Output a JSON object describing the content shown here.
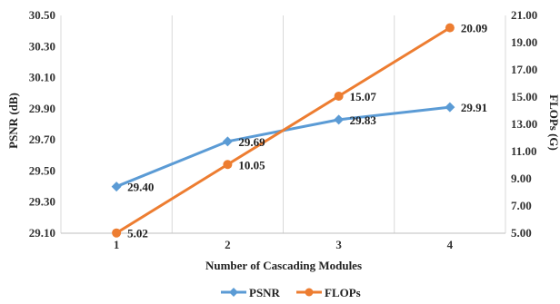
{
  "chart_data": {
    "type": "line",
    "categories": [
      "1",
      "2",
      "3",
      "4"
    ],
    "xlabel": "Number of Cascading Modules",
    "y_left": {
      "label": "PSNR (dB)",
      "range": [
        29.1,
        30.5
      ],
      "ticks": [
        "29.10",
        "29.30",
        "29.50",
        "29.70",
        "29.90",
        "30.10",
        "30.30",
        "30.50"
      ]
    },
    "y_right": {
      "label": "FLOPs (G)",
      "range": [
        5.0,
        21.0
      ],
      "ticks": [
        "5.00",
        "7.00",
        "9.00",
        "11.00",
        "13.00",
        "15.00",
        "17.00",
        "19.00",
        "21.00"
      ]
    },
    "grid": "vertical",
    "legend_position": "bottom",
    "series": [
      {
        "name": "PSNR",
        "axis": "left",
        "color": "#5B9BD5",
        "marker": "diamond",
        "values": [
          29.4,
          29.69,
          29.83,
          29.91
        ],
        "labels": [
          "29.40",
          "29.69",
          "29.83",
          "29.91"
        ]
      },
      {
        "name": "FLOPs",
        "axis": "right",
        "color": "#ED7D31",
        "marker": "circle",
        "values": [
          5.02,
          10.05,
          15.07,
          20.09
        ],
        "labels": [
          "5.02",
          "10.05",
          "15.07",
          "20.09"
        ]
      }
    ]
  }
}
